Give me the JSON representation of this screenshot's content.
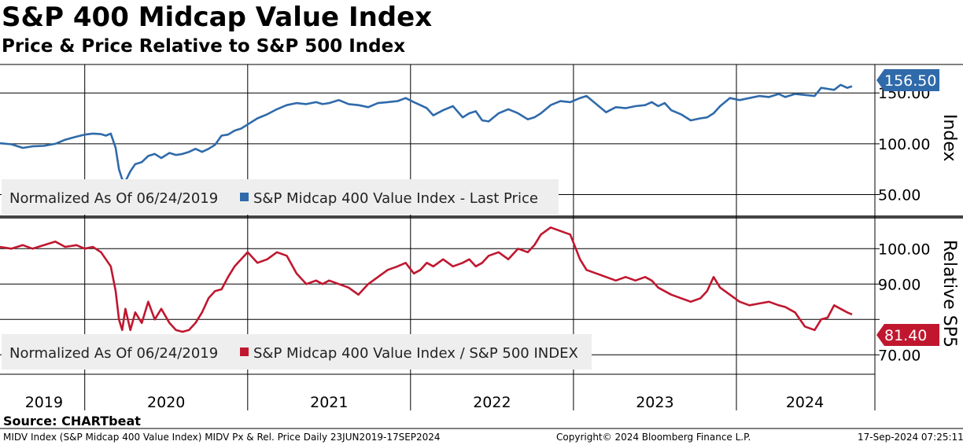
{
  "title": "S&P 400 Midcap Value Index",
  "subtitle": "Price & Price Relative to S&P 500 Index",
  "footer": {
    "source": "Source: CHARTbeat",
    "description": "MIDV Index (S&P Midcap 400 Value Index) MIDV Px & Rel. Price  Daily 23JUN2019-17SEP2024",
    "copyright": "Copyright© 2024 Bloomberg Finance L.P.",
    "timestamp": "17-Sep-2024 07:25:11"
  },
  "colors": {
    "price": "#2f6aaa",
    "relative": "#c0172f",
    "legend_bg": "#eeeeee"
  },
  "chart_data": [
    {
      "type": "line",
      "ylabel": "Index",
      "legend": {
        "prefix": "Normalized As Of 06/24/2019",
        "series_label": "S&P Midcap 400 Value Index - Last Price",
        "placement": "bottom-left"
      },
      "y_ticks": [
        50,
        100,
        150
      ],
      "y_tick_labels": [
        "50.00",
        "100.00",
        "150.00"
      ],
      "ylim": [
        28,
        178
      ],
      "last_value_label": "156.50",
      "series": [
        {
          "name": "S&P Midcap 400 Value Index - Last Price",
          "x": [
            2019.48,
            2019.55,
            2019.62,
            2019.68,
            2019.75,
            2019.82,
            2019.88,
            2019.95,
            2020.0,
            2020.05,
            2020.1,
            2020.13,
            2020.16,
            2020.19,
            2020.21,
            2020.23,
            2020.25,
            2020.28,
            2020.31,
            2020.35,
            2020.39,
            2020.43,
            2020.47,
            2020.52,
            2020.56,
            2020.6,
            2020.64,
            2020.68,
            2020.72,
            2020.76,
            2020.8,
            2020.84,
            2020.88,
            2020.92,
            2020.96,
            2021.0,
            2021.06,
            2021.12,
            2021.18,
            2021.24,
            2021.3,
            2021.36,
            2021.42,
            2021.46,
            2021.5,
            2021.56,
            2021.62,
            2021.68,
            2021.74,
            2021.8,
            2021.86,
            2021.92,
            2021.97,
            2022.02,
            2022.06,
            2022.1,
            2022.14,
            2022.2,
            2022.26,
            2022.32,
            2022.36,
            2022.4,
            2022.44,
            2022.48,
            2022.54,
            2022.6,
            2022.66,
            2022.72,
            2022.76,
            2022.8,
            2022.86,
            2022.92,
            2022.98,
            2023.04,
            2023.08,
            2023.14,
            2023.2,
            2023.26,
            2023.32,
            2023.38,
            2023.44,
            2023.48,
            2023.52,
            2023.56,
            2023.6,
            2023.66,
            2023.72,
            2023.78,
            2023.82,
            2023.86,
            2023.9,
            2023.96,
            2024.02,
            2024.08,
            2024.14,
            2024.2,
            2024.26,
            2024.3,
            2024.36,
            2024.42,
            2024.48,
            2024.52,
            2024.56,
            2024.6,
            2024.64,
            2024.68,
            2024.71
          ],
          "values": [
            100.5,
            99.5,
            96,
            97.5,
            98,
            100,
            104,
            107,
            109,
            110,
            109.5,
            108,
            110,
            96,
            75,
            65,
            63,
            73,
            80,
            82,
            88,
            90,
            86,
            91,
            89,
            90,
            92,
            95,
            92,
            95,
            99,
            108,
            109,
            113,
            115,
            119,
            125,
            129,
            134,
            138,
            140,
            139,
            141,
            139,
            140,
            143,
            139,
            138,
            136,
            140,
            141,
            142,
            145,
            141,
            138,
            135,
            128,
            133,
            137,
            126,
            130,
            132,
            123,
            122,
            130,
            134,
            130,
            124,
            126,
            130,
            138,
            142,
            141,
            145,
            147,
            139,
            131,
            136,
            135,
            137,
            138,
            141,
            137,
            140,
            133,
            129,
            123,
            125,
            126,
            130,
            137,
            145,
            143,
            145,
            147,
            146,
            149,
            146,
            149,
            148,
            147,
            155,
            154,
            153,
            158,
            155,
            156.5
          ]
        }
      ]
    },
    {
      "type": "line",
      "ylabel": "Relative SP5",
      "legend": {
        "prefix": "Normalized As Of 06/24/2019",
        "series_label": "S&P Midcap 400 Value Index / S&P 500 INDEX",
        "placement": "bottom-left"
      },
      "y_ticks": [
        70,
        80,
        90,
        100
      ],
      "y_tick_labels": [
        "70.00",
        "",
        "90.00",
        "100.00"
      ],
      "ylim": [
        64.5,
        108.5
      ],
      "last_value_label": "81.40",
      "series": [
        {
          "name": "S&P Midcap 400 Value Index / S&P 500 INDEX",
          "x": [
            2019.48,
            2019.55,
            2019.62,
            2019.68,
            2019.75,
            2019.82,
            2019.88,
            2019.95,
            2020.0,
            2020.05,
            2020.1,
            2020.13,
            2020.16,
            2020.19,
            2020.21,
            2020.23,
            2020.25,
            2020.28,
            2020.31,
            2020.35,
            2020.39,
            2020.43,
            2020.47,
            2020.52,
            2020.56,
            2020.6,
            2020.64,
            2020.68,
            2020.72,
            2020.76,
            2020.8,
            2020.84,
            2020.88,
            2020.92,
            2020.96,
            2021.0,
            2021.06,
            2021.12,
            2021.18,
            2021.24,
            2021.3,
            2021.36,
            2021.42,
            2021.46,
            2021.5,
            2021.56,
            2021.62,
            2021.68,
            2021.74,
            2021.8,
            2021.86,
            2021.92,
            2021.97,
            2022.02,
            2022.06,
            2022.1,
            2022.14,
            2022.2,
            2022.26,
            2022.32,
            2022.36,
            2022.4,
            2022.44,
            2022.48,
            2022.54,
            2022.6,
            2022.66,
            2022.72,
            2022.76,
            2022.8,
            2022.86,
            2022.92,
            2022.98,
            2023.04,
            2023.08,
            2023.14,
            2023.2,
            2023.26,
            2023.32,
            2023.38,
            2023.44,
            2023.48,
            2023.52,
            2023.56,
            2023.6,
            2023.66,
            2023.72,
            2023.78,
            2023.82,
            2023.86,
            2023.9,
            2023.96,
            2024.02,
            2024.08,
            2024.14,
            2024.2,
            2024.26,
            2024.3,
            2024.36,
            2024.42,
            2024.48,
            2024.52,
            2024.56,
            2024.6,
            2024.64,
            2024.68,
            2024.71
          ],
          "values": [
            100.5,
            100,
            101,
            100,
            101,
            102,
            100.5,
            101,
            100,
            100.5,
            99,
            97,
            95,
            88,
            80,
            77,
            83,
            77,
            82,
            79,
            85,
            80,
            83,
            79,
            77,
            76.5,
            77,
            79,
            82,
            86,
            88,
            88.5,
            92,
            95,
            97,
            99,
            96,
            97,
            99,
            98,
            93,
            90,
            91,
            90,
            91,
            90,
            89,
            87,
            90,
            92,
            94,
            95,
            96,
            93,
            94,
            96,
            95,
            97,
            95,
            96,
            97,
            95,
            96,
            98,
            99,
            97,
            100,
            99,
            101,
            104,
            106,
            105,
            104,
            97,
            94,
            93,
            92,
            91,
            92,
            91,
            92,
            91,
            89,
            88,
            87,
            86,
            85,
            86,
            88,
            92,
            89,
            87,
            85,
            84,
            84.5,
            85,
            84,
            83.5,
            82,
            78,
            77,
            80,
            80.5,
            84,
            83,
            82,
            81.4
          ]
        }
      ]
    }
  ],
  "x_axis": {
    "year_labels": [
      "2019",
      "2020",
      "2021",
      "2022",
      "2023",
      "2024"
    ],
    "year_label_x": [
      2019.75,
      2020.5,
      2021.5,
      2022.5,
      2023.5,
      2024.42
    ],
    "year_boundaries": [
      2020,
      2021,
      2022,
      2023,
      2024
    ],
    "domain": [
      2019.48,
      2024.85
    ]
  }
}
